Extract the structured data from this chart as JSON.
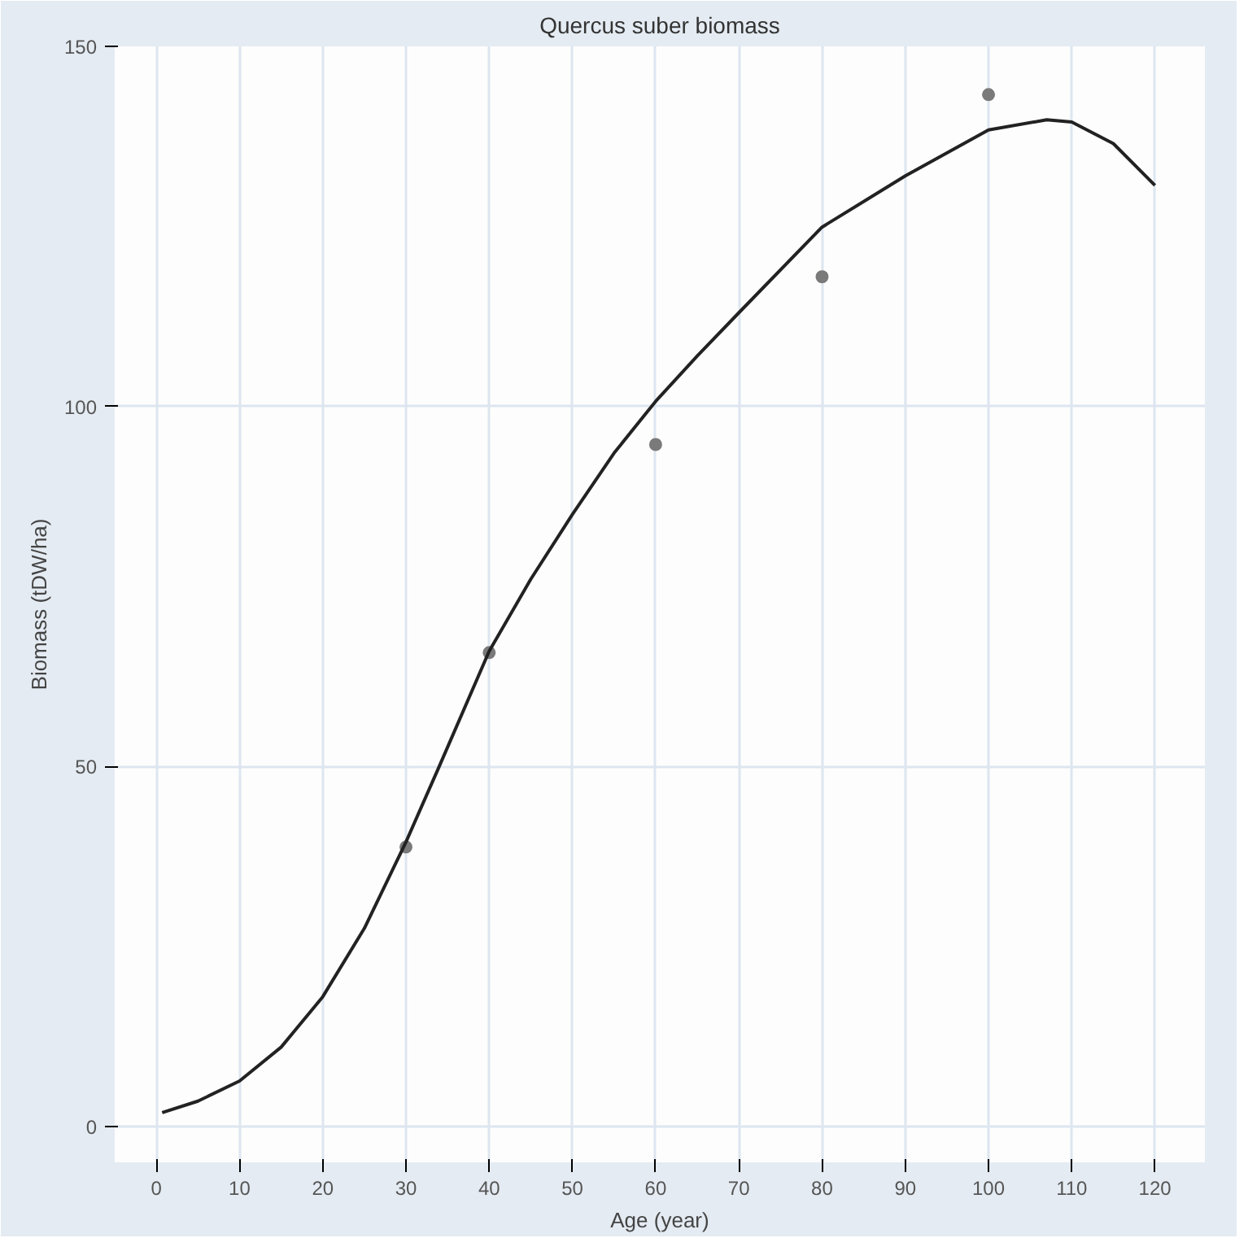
{
  "chart_data": {
    "type": "scatter",
    "title": "Quercus suber biomass",
    "xlabel": "Age (year)",
    "ylabel": "Biomass (tDW/ha)",
    "xlim": [
      -5,
      126
    ],
    "ylim": [
      -5,
      150
    ],
    "xticks": [
      0,
      10,
      20,
      30,
      40,
      50,
      60,
      70,
      80,
      90,
      100,
      110,
      120
    ],
    "yticks": [
      0,
      50,
      100,
      150
    ],
    "grid": true,
    "series": [
      {
        "marker": "circle",
        "color": "#7a7a7a",
        "x": [
          30,
          40,
          60,
          80,
          100
        ],
        "values": [
          38.8,
          65.8,
          94.7,
          118,
          143.3
        ]
      },
      {
        "type": "line",
        "color": "#222222",
        "line_style": "solid",
        "x": [
          0.7,
          5,
          10,
          15,
          20,
          25,
          30,
          34,
          40,
          45,
          50,
          55,
          60,
          65,
          70,
          80,
          90,
          100,
          107,
          110,
          115,
          120
        ],
        "values": [
          1.9,
          3.5,
          6.3,
          11,
          18,
          27.5,
          39.5,
          50,
          66,
          76,
          85,
          93.5,
          100.7,
          107,
          113,
          124.9,
          132,
          138.4,
          139.8,
          139.5,
          136.5,
          130.7
        ]
      }
    ]
  }
}
